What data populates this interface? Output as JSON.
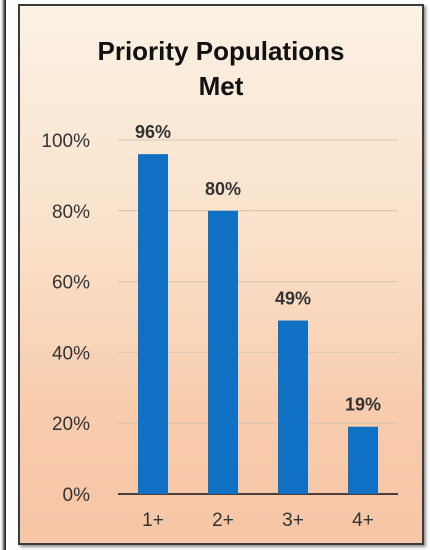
{
  "chart_data": {
    "type": "bar",
    "title": "Priority Populations Met",
    "title_lines": [
      "Priority Populations",
      "Met"
    ],
    "categories": [
      "1+",
      "2+",
      "3+",
      "4+"
    ],
    "values": [
      96,
      80,
      49,
      19
    ],
    "data_labels": [
      "96%",
      "80%",
      "49%",
      "19%"
    ],
    "y_ticks": [
      "0%",
      "20%",
      "40%",
      "60%",
      "80%",
      "100%"
    ],
    "ylim": [
      0,
      100
    ],
    "xlabel": "",
    "ylabel": "",
    "grid": true,
    "legend": "none",
    "bar_color": "#1070c4",
    "background_colors": [
      "#fbf1e4",
      "#f6c6a6"
    ]
  }
}
